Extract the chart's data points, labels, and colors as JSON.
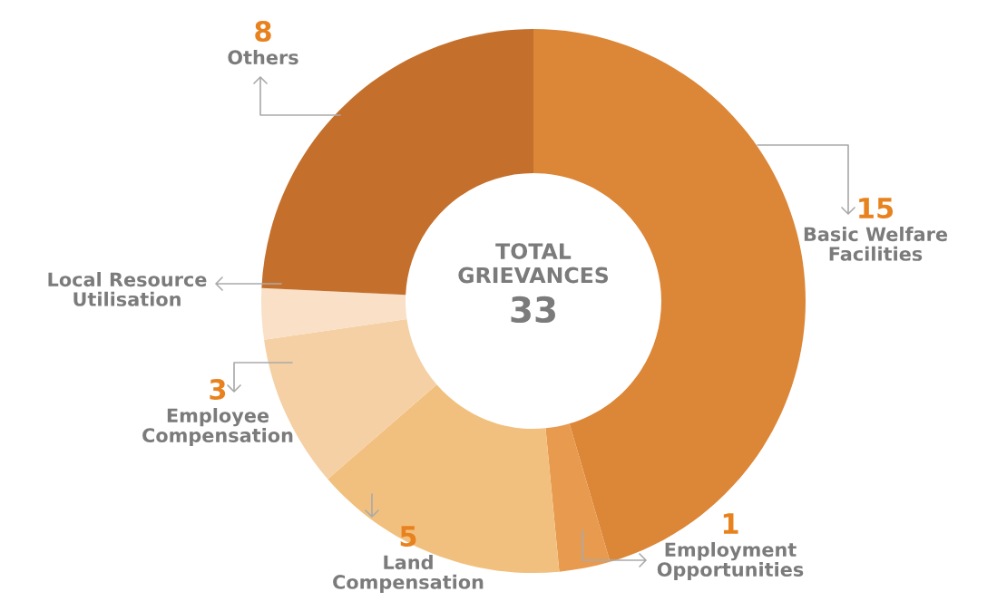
{
  "chart_data": {
    "type": "donut",
    "categories": [
      "Basic Welfare\nFacilities",
      "Employment\nOpportunities",
      "Land\nCompensation",
      "Employee\nCompensation",
      "Local Resource\nUtilisation",
      "Others"
    ],
    "values": [
      15,
      1,
      5,
      3,
      1,
      8
    ],
    "value_labels": [
      "15",
      "1",
      "5",
      "3",
      null,
      "8"
    ],
    "colors": [
      "#dc8637",
      "#e89a4f",
      "#f2c07e",
      "#f5d0a4",
      "#f9e0c6",
      "#c4702c"
    ],
    "annotations": [
      "TOTAL\nGRIEVANCES",
      "33"
    ]
  }
}
